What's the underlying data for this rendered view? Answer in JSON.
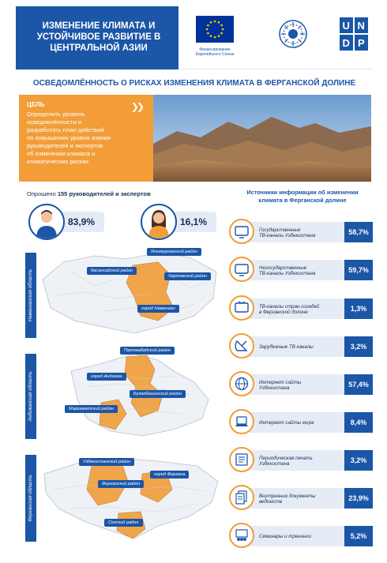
{
  "header": {
    "title_lines": [
      "ИЗМЕНЕНИЕ КЛИМАТА И",
      "УСТОЙЧИВОЕ РАЗВИТИЕ В",
      "ЦЕНТРАЛЬНОЙ АЗИИ"
    ],
    "eu_caption_lines": [
      "Финансирование",
      "Европейского Союза"
    ],
    "undp_text": "U N D P"
  },
  "main_title": "ОСВЕДОМЛЁННОСТЬ О РИСКАХ ИЗМЕНЕНИЯ КЛИМАТА В ФЕРГАНСКОЙ ДОЛИНЕ",
  "goal": {
    "label": "ЦЕЛЬ",
    "text_lines": [
      "Определить уровень",
      "осведомлённости и",
      "разработать план действий",
      "по повышению уровня знания",
      "руководителей и экспертов",
      "об изменении климата и",
      "климатических рисках"
    ]
  },
  "survey": {
    "prefix": "Опрошено",
    "count": "155",
    "suffix": "руководителей и экспертов",
    "male_pct": "83,9%",
    "female_pct": "16,1%"
  },
  "regions": [
    {
      "name": "Наманганская область",
      "districts": [
        "Янгикурганский район",
        "Касансайский район",
        "Чартакский район",
        "город Наманган"
      ]
    },
    {
      "name": "Андижанская область",
      "districts": [
        "Пахтаабадский район",
        "город Андижан",
        "Булакбашинский район",
        "Мархаматский район"
      ]
    },
    {
      "name": "Ферганская область",
      "districts": [
        "Узбекистанский район",
        "город Фергана",
        "Ферганский район",
        "Сохский район"
      ]
    }
  ],
  "sources": {
    "title_lines": [
      "Источники информации об изменении",
      "климата в Ферганской долине"
    ],
    "items": [
      {
        "label_lines": [
          "Государственные",
          "ТВ-каналы Узбекистана"
        ],
        "pct": "58,7%",
        "icon": "tv-icon"
      },
      {
        "label_lines": [
          "Негосударственные",
          "ТВ-каналы Узбекистана"
        ],
        "pct": "59,7%",
        "icon": "tv-icon"
      },
      {
        "label_lines": [
          "ТВ-каналы стран соседей",
          "в Ферганской долине"
        ],
        "pct": "1,3%",
        "icon": "tv-icon"
      },
      {
        "label_lines": [
          "Зарубежные ТВ каналы"
        ],
        "pct": "3,2%",
        "icon": "satellite-icon"
      },
      {
        "label_lines": [
          "Интернет сайты",
          "Узбекистана"
        ],
        "pct": "57,4%",
        "icon": "globe-icon"
      },
      {
        "label_lines": [
          "Интернет сайты мира"
        ],
        "pct": "8,4%",
        "icon": "laptop-icon"
      },
      {
        "label_lines": [
          "Периодическая печать",
          "Узбекистана"
        ],
        "pct": "3,2%",
        "icon": "newspaper-icon"
      },
      {
        "label_lines": [
          "Внутренние документы",
          "ведомств"
        ],
        "pct": "23,9%",
        "icon": "documents-icon"
      },
      {
        "label_lines": [
          "Семинары и тренинги"
        ],
        "pct": "5,2%",
        "icon": "seminar-icon"
      }
    ]
  },
  "colors": {
    "brand_blue": "#1b56a7",
    "orange": "#f29d38",
    "light_blue": "#e5ecf6"
  }
}
